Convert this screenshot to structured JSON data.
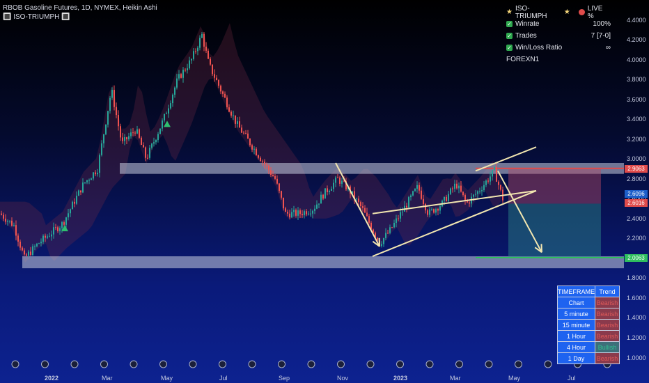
{
  "header": {
    "title": "RBOB Gasoline Futures, 1D, NYMEX, Heikin Ashi",
    "indicator": "🔳 ISO-TRIUMPH 🔳"
  },
  "stats": {
    "name": "ISO-TRIUMPH",
    "live_label": "LIVE %",
    "rows": [
      {
        "label": "Winrate",
        "value": "100%"
      },
      {
        "label": "Trades",
        "value": "7 [7-0]"
      },
      {
        "label": "Win/Loss Ratio",
        "value": "∞"
      }
    ],
    "footer": "FOREXN1"
  },
  "timeframe_table": {
    "headers": [
      "TIMEFRAME",
      "Trend"
    ],
    "rows": [
      {
        "tf": "Chart",
        "trend": "Bearish"
      },
      {
        "tf": "5 minute",
        "trend": "Bearish"
      },
      {
        "tf": "15 minute",
        "trend": "Bearish"
      },
      {
        "tf": "1 Hour",
        "trend": "Bearish"
      },
      {
        "tf": "4 Hour",
        "trend": "Bullish"
      },
      {
        "tf": "1 Day",
        "trend": "Bearish"
      }
    ]
  },
  "price_tags": {
    "entry": "2.9063",
    "current_a": "2.6096",
    "current_b": "2.6016",
    "target": "2.0063"
  },
  "colors": {
    "bull": "#26a69a",
    "bear": "#ef5350",
    "zone": "#c8cde0",
    "trend_line": "#f2e6b0",
    "stop": "#e04b4b",
    "target": "#2fbf5f"
  },
  "chart_data": {
    "type": "candlestick",
    "title": "RBOB Gasoline Futures, 1D, NYMEX, Heikin Ashi",
    "y_ticks": [
      "4.4000",
      "4.2000",
      "4.0000",
      "3.8000",
      "3.6000",
      "3.4000",
      "3.2000",
      "3.0000",
      "2.8000",
      "2.6000",
      "2.4000",
      "2.2000",
      "2.0000",
      "1.8000",
      "1.6000",
      "1.4000",
      "1.2000",
      "1.0000"
    ],
    "ylim": [
      1.0,
      4.4
    ],
    "x_ticks": [
      {
        "label": "2022",
        "bold": true
      },
      {
        "label": "Mar",
        "bold": false
      },
      {
        "label": "May",
        "bold": false
      },
      {
        "label": "Jul",
        "bold": false
      },
      {
        "label": "Sep",
        "bold": false
      },
      {
        "label": "Nov",
        "bold": false
      },
      {
        "label": "2023",
        "bold": true
      },
      {
        "label": "Mar",
        "bold": false
      },
      {
        "label": "May",
        "bold": false
      },
      {
        "label": "Jul",
        "bold": false
      }
    ],
    "close_path": [
      [
        0,
        2.45
      ],
      [
        20,
        2.33
      ],
      [
        35,
        2.0
      ],
      [
        55,
        2.15
      ],
      [
        90,
        2.35
      ],
      [
        120,
        2.75
      ],
      [
        140,
        2.9
      ],
      [
        160,
        3.7
      ],
      [
        175,
        3.15
      ],
      [
        195,
        3.3
      ],
      [
        210,
        3.0
      ],
      [
        235,
        3.4
      ],
      [
        255,
        3.8
      ],
      [
        275,
        4.0
      ],
      [
        290,
        4.25
      ],
      [
        300,
        3.95
      ],
      [
        320,
        3.65
      ],
      [
        340,
        3.35
      ],
      [
        360,
        3.15
      ],
      [
        380,
        2.95
      ],
      [
        395,
        2.8
      ],
      [
        410,
        2.45
      ],
      [
        430,
        2.45
      ],
      [
        450,
        2.5
      ],
      [
        465,
        2.65
      ],
      [
        485,
        2.8
      ],
      [
        500,
        2.7
      ],
      [
        520,
        2.5
      ],
      [
        545,
        2.15
      ],
      [
        560,
        2.28
      ],
      [
        580,
        2.5
      ],
      [
        600,
        2.72
      ],
      [
        615,
        2.45
      ],
      [
        635,
        2.55
      ],
      [
        655,
        2.75
      ],
      [
        670,
        2.55
      ],
      [
        690,
        2.7
      ],
      [
        710,
        2.88
      ],
      [
        722,
        2.6
      ]
    ],
    "zones": [
      {
        "name": "resistance",
        "from": 2.85,
        "to": 2.96
      },
      {
        "name": "support",
        "from": 1.9,
        "to": 2.02
      }
    ],
    "channel": {
      "upper": [
        [
          683,
          2.88
        ],
        [
          770,
          3.12
        ]
      ],
      "lower": [
        [
          535,
          2.02
        ],
        [
          770,
          2.68
        ]
      ],
      "mid": [
        [
          535,
          2.45
        ],
        [
          770,
          2.68
        ]
      ]
    },
    "down_arrows": [
      {
        "from": [
          482,
          2.96
        ],
        "to": [
          545,
          2.12
        ]
      },
      {
        "from": [
          715,
          2.88
        ],
        "to": [
          778,
          2.06
        ]
      }
    ],
    "signals": [
      {
        "x": 93,
        "price": 2.3
      },
      {
        "x": 240,
        "price": 3.35
      }
    ],
    "trade_box": {
      "x_start": 730,
      "x_end": 863,
      "stop": 2.906,
      "entry": 2.55,
      "target": 2.006
    }
  }
}
